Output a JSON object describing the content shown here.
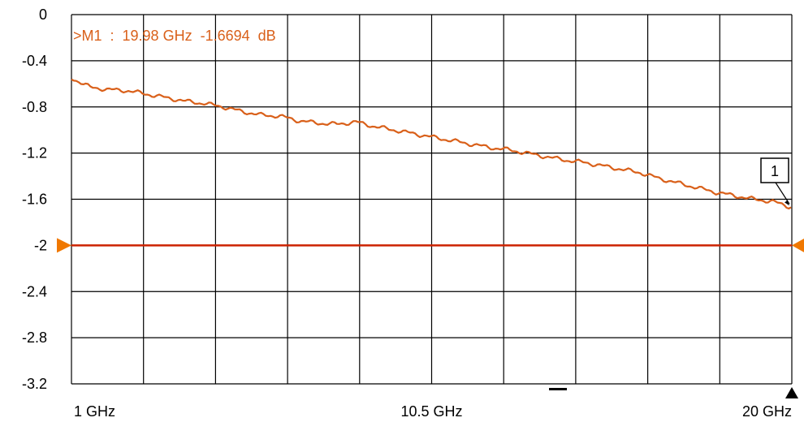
{
  "chart_data": {
    "type": "line",
    "x_unit": "GHz",
    "xlim": [
      1,
      20
    ],
    "ylim": [
      -3.2,
      0
    ],
    "y_ticks": [
      "0",
      "-0.4",
      "-0.8",
      "-1.2",
      "-1.6",
      "-2",
      "-2.4",
      "-2.8",
      "-3.2"
    ],
    "x_tick_labels": [
      "1 GHz",
      "10.5 GHz",
      "20 GHz"
    ],
    "grid": true,
    "x_divisions": 10,
    "reference_level": -2,
    "series": [
      {
        "color": "#d9601a",
        "x": [
          1.0,
          1.5,
          2.0,
          2.5,
          3.0,
          3.5,
          4.0,
          4.5,
          5.0,
          5.5,
          6.0,
          6.5,
          7.0,
          7.5,
          8.0,
          8.5,
          9.0,
          9.5,
          10.0,
          10.5,
          11.0,
          11.5,
          12.0,
          12.5,
          13.0,
          13.5,
          14.0,
          14.5,
          15.0,
          15.5,
          16.0,
          16.5,
          17.0,
          17.5,
          18.0,
          18.5,
          19.0,
          19.5,
          19.98
        ],
        "y": [
          -0.55,
          -0.63,
          -0.65,
          -0.66,
          -0.69,
          -0.72,
          -0.75,
          -0.77,
          -0.8,
          -0.84,
          -0.87,
          -0.88,
          -0.92,
          -0.94,
          -0.95,
          -0.93,
          -0.97,
          -1.0,
          -1.03,
          -1.06,
          -1.09,
          -1.12,
          -1.15,
          -1.17,
          -1.2,
          -1.23,
          -1.26,
          -1.28,
          -1.31,
          -1.34,
          -1.37,
          -1.42,
          -1.46,
          -1.5,
          -1.54,
          -1.57,
          -1.6,
          -1.62,
          -1.6694
        ]
      }
    ],
    "marker": {
      "label": ">M1  :  19.98 GHz  -1.6694  dB",
      "number": "1",
      "x": 19.98,
      "y": -1.6694,
      "color": "#d9601a"
    },
    "colors": {
      "trace": "#d9601a",
      "reference_line": "#cc2200",
      "reference_arrow": "#f07800",
      "grid": "#000000"
    }
  }
}
